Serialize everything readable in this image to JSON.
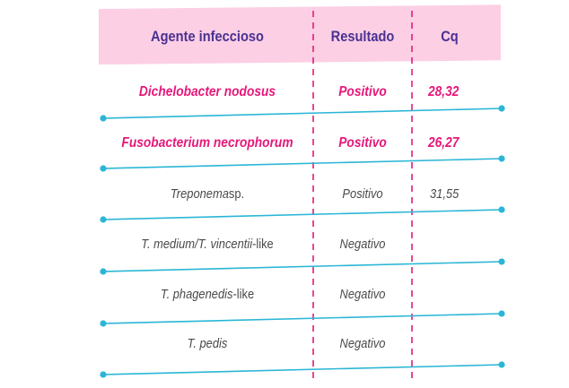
{
  "table": {
    "headers": {
      "agent": "Agente infeccioso",
      "result": "Resultado",
      "cq": "Cq"
    },
    "rows": [
      {
        "agent_name": "Dichelobacter nodosus",
        "agent_suffix": "",
        "result": "Positivo",
        "cq": "28,32",
        "highlight": true
      },
      {
        "agent_name": "Fusobacterium necrophorum",
        "agent_suffix": "",
        "result": "Positivo",
        "cq": "26,27",
        "highlight": true
      },
      {
        "agent_name": "Treponema",
        "agent_suffix": " sp.",
        "result": "Positivo",
        "cq": "31,55",
        "highlight": false
      },
      {
        "agent_name": "T. medium/T. vincentii",
        "agent_suffix": "-like",
        "result": "Negativo",
        "cq": "",
        "highlight": false
      },
      {
        "agent_name": "T. phagenedis",
        "agent_suffix": "-like",
        "result": "Negativo",
        "cq": "",
        "highlight": false
      },
      {
        "agent_name": "T. pedis",
        "agent_suffix": "",
        "result": "Negativo",
        "cq": "",
        "highlight": false
      }
    ]
  },
  "colors": {
    "header_bg": "#fccfe4",
    "header_text": "#4a3193",
    "highlight_text": "#e5197a",
    "normal_text": "#4a4a4a",
    "row_line": "#2bb6d6",
    "divider": "#e5197a"
  }
}
